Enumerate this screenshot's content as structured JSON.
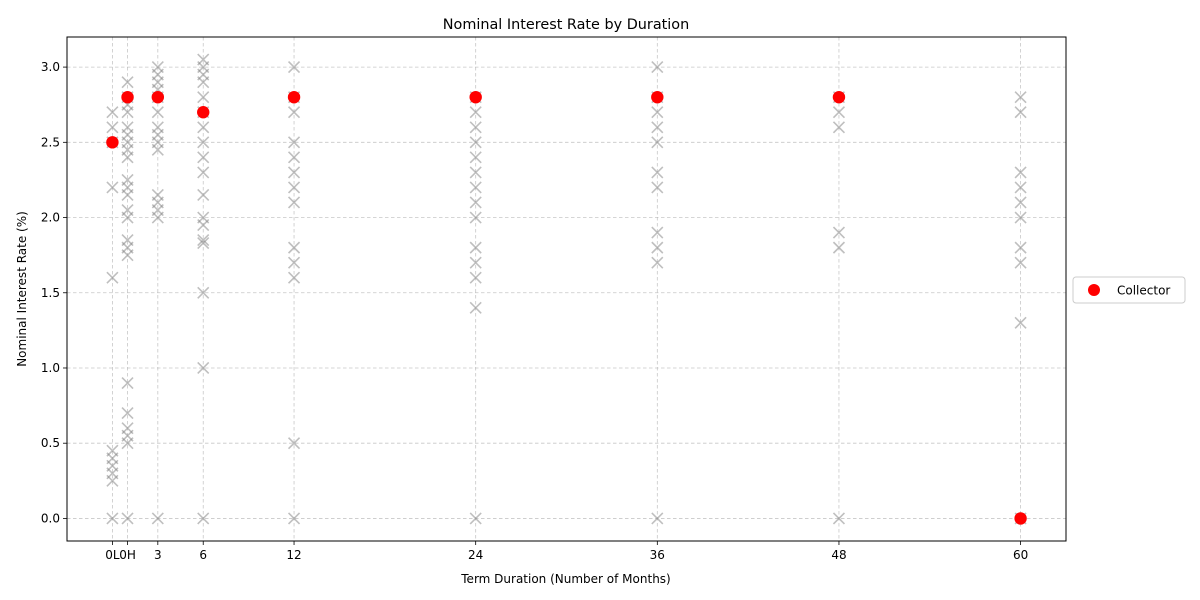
{
  "chart_data": {
    "type": "scatter",
    "title": "Nominal Interest Rate by Duration",
    "xlabel": "Term Duration (Number of Months)",
    "ylabel": "Nominal Interest Rate (%)",
    "xlim": [
      -3,
      63
    ],
    "ylim": [
      -0.15,
      3.2
    ],
    "x_ticks": [
      {
        "value": 0,
        "label": "0L"
      },
      {
        "value": 1,
        "label": "0H"
      },
      {
        "value": 3,
        "label": "3"
      },
      {
        "value": 6,
        "label": "6"
      },
      {
        "value": 12,
        "label": "12"
      },
      {
        "value": 24,
        "label": "24"
      },
      {
        "value": 36,
        "label": "36"
      },
      {
        "value": 48,
        "label": "48"
      },
      {
        "value": 60,
        "label": "60"
      }
    ],
    "y_ticks": [
      0.0,
      0.5,
      1.0,
      1.5,
      2.0,
      2.5,
      3.0
    ],
    "y_tick_labels": [
      "0.0",
      "0.5",
      "1.0",
      "1.5",
      "2.0",
      "2.5",
      "3.0"
    ],
    "grid": true,
    "legend_position": "right",
    "colors": {
      "highlight": "#ff0000",
      "other": "#808080"
    },
    "series": [
      {
        "name": "Collector",
        "marker": "circle",
        "points": [
          [
            0,
            2.5
          ],
          [
            1,
            2.8
          ],
          [
            3,
            2.8
          ],
          [
            6,
            2.7
          ],
          [
            12,
            2.8
          ],
          [
            24,
            2.8
          ],
          [
            36,
            2.8
          ],
          [
            48,
            2.8
          ],
          [
            60,
            0.0
          ]
        ]
      },
      {
        "marker": "x",
        "points": [
          [
            0,
            2.7
          ],
          [
            0,
            2.6
          ],
          [
            0,
            2.5
          ],
          [
            0,
            2.2
          ],
          [
            0,
            1.6
          ],
          [
            0,
            0.45
          ],
          [
            0,
            0.4
          ],
          [
            0,
            0.35
          ],
          [
            0,
            0.3
          ],
          [
            0,
            0.25
          ],
          [
            0,
            0.0
          ],
          [
            1,
            2.9
          ],
          [
            1,
            2.8
          ],
          [
            1,
            2.75
          ],
          [
            1,
            2.7
          ],
          [
            1,
            2.6
          ],
          [
            1,
            2.55
          ],
          [
            1,
            2.5
          ],
          [
            1,
            2.45
          ],
          [
            1,
            2.4
          ],
          [
            1,
            2.25
          ],
          [
            1,
            2.2
          ],
          [
            1,
            2.15
          ],
          [
            1,
            2.05
          ],
          [
            1,
            2.0
          ],
          [
            1,
            1.85
          ],
          [
            1,
            1.8
          ],
          [
            1,
            1.75
          ],
          [
            1,
            0.9
          ],
          [
            1,
            0.7
          ],
          [
            1,
            0.6
          ],
          [
            1,
            0.55
          ],
          [
            1,
            0.5
          ],
          [
            1,
            0.0
          ],
          [
            3,
            3.0
          ],
          [
            3,
            2.95
          ],
          [
            3,
            2.9
          ],
          [
            3,
            2.85
          ],
          [
            3,
            2.8
          ],
          [
            3,
            2.7
          ],
          [
            3,
            2.6
          ],
          [
            3,
            2.55
          ],
          [
            3,
            2.5
          ],
          [
            3,
            2.45
          ],
          [
            3,
            2.15
          ],
          [
            3,
            2.1
          ],
          [
            3,
            2.05
          ],
          [
            3,
            2.0
          ],
          [
            3,
            0.0
          ],
          [
            6,
            3.05
          ],
          [
            6,
            3.0
          ],
          [
            6,
            2.95
          ],
          [
            6,
            2.9
          ],
          [
            6,
            2.8
          ],
          [
            6,
            2.7
          ],
          [
            6,
            2.6
          ],
          [
            6,
            2.5
          ],
          [
            6,
            2.4
          ],
          [
            6,
            2.3
          ],
          [
            6,
            2.15
          ],
          [
            6,
            2.0
          ],
          [
            6,
            1.95
          ],
          [
            6,
            1.85
          ],
          [
            6,
            1.83
          ],
          [
            6,
            1.5
          ],
          [
            6,
            1.0
          ],
          [
            6,
            0.0
          ],
          [
            12,
            3.0
          ],
          [
            12,
            2.8
          ],
          [
            12,
            2.7
          ],
          [
            12,
            2.5
          ],
          [
            12,
            2.4
          ],
          [
            12,
            2.3
          ],
          [
            12,
            2.2
          ],
          [
            12,
            2.1
          ],
          [
            12,
            1.8
          ],
          [
            12,
            1.7
          ],
          [
            12,
            1.6
          ],
          [
            12,
            0.5
          ],
          [
            12,
            0.0
          ],
          [
            24,
            2.8
          ],
          [
            24,
            2.7
          ],
          [
            24,
            2.6
          ],
          [
            24,
            2.5
          ],
          [
            24,
            2.4
          ],
          [
            24,
            2.3
          ],
          [
            24,
            2.2
          ],
          [
            24,
            2.1
          ],
          [
            24,
            2.0
          ],
          [
            24,
            1.8
          ],
          [
            24,
            1.7
          ],
          [
            24,
            1.6
          ],
          [
            24,
            1.4
          ],
          [
            24,
            0.0
          ],
          [
            36,
            3.0
          ],
          [
            36,
            2.8
          ],
          [
            36,
            2.7
          ],
          [
            36,
            2.6
          ],
          [
            36,
            2.5
          ],
          [
            36,
            2.3
          ],
          [
            36,
            2.2
          ],
          [
            36,
            1.9
          ],
          [
            36,
            1.8
          ],
          [
            36,
            1.7
          ],
          [
            36,
            0.0
          ],
          [
            48,
            2.8
          ],
          [
            48,
            2.7
          ],
          [
            48,
            2.6
          ],
          [
            48,
            1.9
          ],
          [
            48,
            1.8
          ],
          [
            48,
            0.0
          ],
          [
            60,
            2.8
          ],
          [
            60,
            2.7
          ],
          [
            60,
            2.3
          ],
          [
            60,
            2.2
          ],
          [
            60,
            2.1
          ],
          [
            60,
            2.0
          ],
          [
            60,
            1.8
          ],
          [
            60,
            1.7
          ],
          [
            60,
            1.3
          ],
          [
            60,
            0.0
          ]
        ]
      }
    ]
  }
}
